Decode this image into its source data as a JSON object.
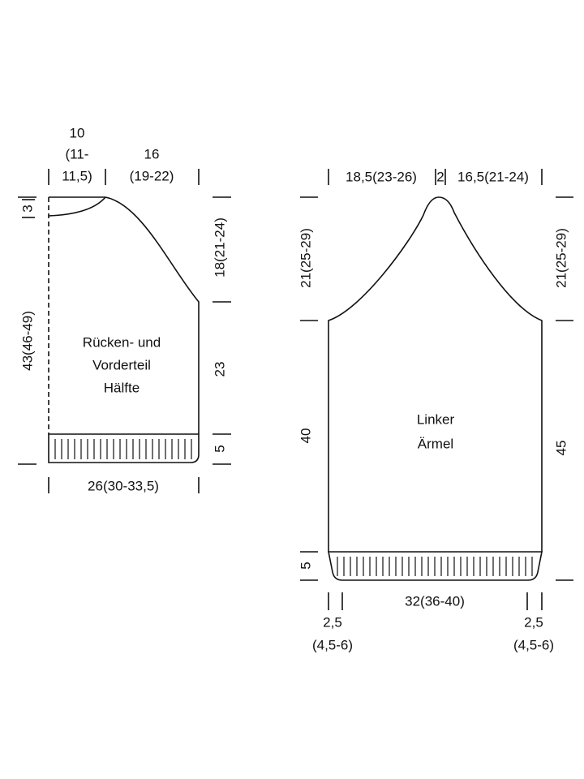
{
  "back_front": {
    "neck_width": [
      "10",
      "(11-",
      "11,5)"
    ],
    "raglan_width": [
      "16",
      "(19-22)"
    ],
    "neck_depth": "3",
    "total_length": "43(46-49)",
    "raglan_height": "18(21-24)",
    "side_length": "23",
    "rib_height": "5",
    "width": "26(30-33,5)",
    "label": [
      "Rücken- und",
      "Vorderteil",
      "Hälfte"
    ]
  },
  "sleeve": {
    "top_left": "18,5(23-26)",
    "top_mid": "2",
    "top_right": "16,5(21-24)",
    "left_cap_height": "21(25-29)",
    "left_length": "40",
    "rib_height": "5",
    "right_cap_height": "21(25-29)",
    "right_length": "45",
    "width": "32(36-40)",
    "left_taper": [
      "2,5",
      "(4,5-6)"
    ],
    "right_taper": [
      "2,5",
      "(4,5-6)"
    ],
    "label": [
      "Linker",
      "Ärmel"
    ]
  }
}
